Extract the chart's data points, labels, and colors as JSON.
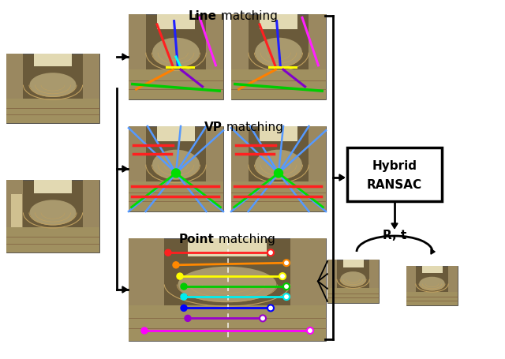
{
  "bg_color": "#ffffff",
  "fig_width": 6.4,
  "fig_height": 4.55,
  "labels": {
    "line_bold": "Line",
    "line_rest": " matching",
    "vp_bold": "VP",
    "vp_rest": " matching",
    "point_bold": "Point",
    "point_rest": " matching",
    "hybrid_line1": "Hybrid",
    "hybrid_line2": "RANSAC",
    "rt_label": "R, t"
  },
  "corridor_bg": "#8a7a5a",
  "corridor_floor": "#a09060",
  "corridor_wall": "#c8b888",
  "corridor_arch": "#e8d8b0",
  "corridor_ceil": "#f8f0d0"
}
